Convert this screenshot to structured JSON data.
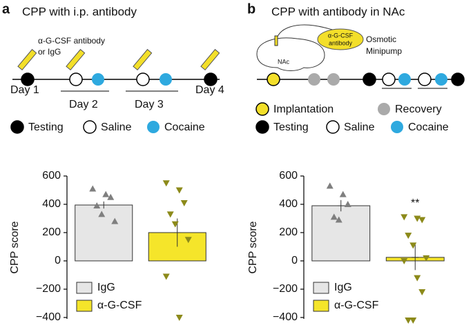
{
  "diagrams": [
    {
      "panel": "a",
      "title": "CPP with i.p. antibody",
      "injection_label": [
        "α-G-CSF antibody",
        "or IgG"
      ],
      "days": [
        "Day 1",
        "Day 2",
        "Day 3",
        "Day 4"
      ],
      "legend": [
        "Testing",
        "Saline",
        "Cocaine"
      ]
    },
    {
      "panel": "b",
      "title": "CPP with antibody in NAc",
      "pump_label": [
        "α-G-CSF",
        "antibody"
      ],
      "pump_name": [
        "Osmotic",
        "Minipump"
      ],
      "region": "NAc",
      "legend": [
        "Implantation",
        "Recovery",
        "Testing",
        "Saline",
        "Cocaine"
      ]
    }
  ],
  "chart_data": [
    {
      "type": "bar",
      "ylabel": "CPP score",
      "categories": [
        "IgG",
        "α-G-CSF"
      ],
      "colors": [
        "#e6e6e6",
        "#f5e52a"
      ],
      "point_colors": [
        "#7f7f7f",
        "#8c8a1a"
      ],
      "values": [
        395,
        200
      ],
      "errors": [
        25,
        100
      ],
      "points": [
        [
          510,
          470,
          450,
          390,
          330,
          280
        ],
        [
          550,
          500,
          410,
          330,
          260,
          150,
          -110,
          -400
        ]
      ],
      "ylim": [
        -410,
        600
      ],
      "yticks": [
        {
          "value": -400,
          "label": "−400"
        },
        {
          "value": -200,
          "label": "−200"
        },
        0,
        200,
        400,
        600
      ],
      "legend": "lower left"
    },
    {
      "type": "bar",
      "ylabel": "CPP score",
      "categories": [
        "IgG",
        "α-G-CSF"
      ],
      "colors": [
        "#e6e6e6",
        "#f5e52a"
      ],
      "point_colors": [
        "#7f7f7f",
        "#8c8a1a"
      ],
      "values": [
        390,
        25
      ],
      "errors": [
        40,
        90
      ],
      "points": [
        [
          530,
          470,
          400,
          310,
          290
        ],
        [
          310,
          300,
          290,
          180,
          110,
          20,
          0,
          -120,
          -220,
          -420,
          -420
        ]
      ],
      "ylim": [
        -410,
        600
      ],
      "yticks": [
        {
          "value": -400,
          "label": "−400"
        },
        {
          "value": -200,
          "label": "−200"
        },
        0,
        200,
        400,
        600
      ],
      "legend": "lower left",
      "annotation": "**"
    }
  ]
}
